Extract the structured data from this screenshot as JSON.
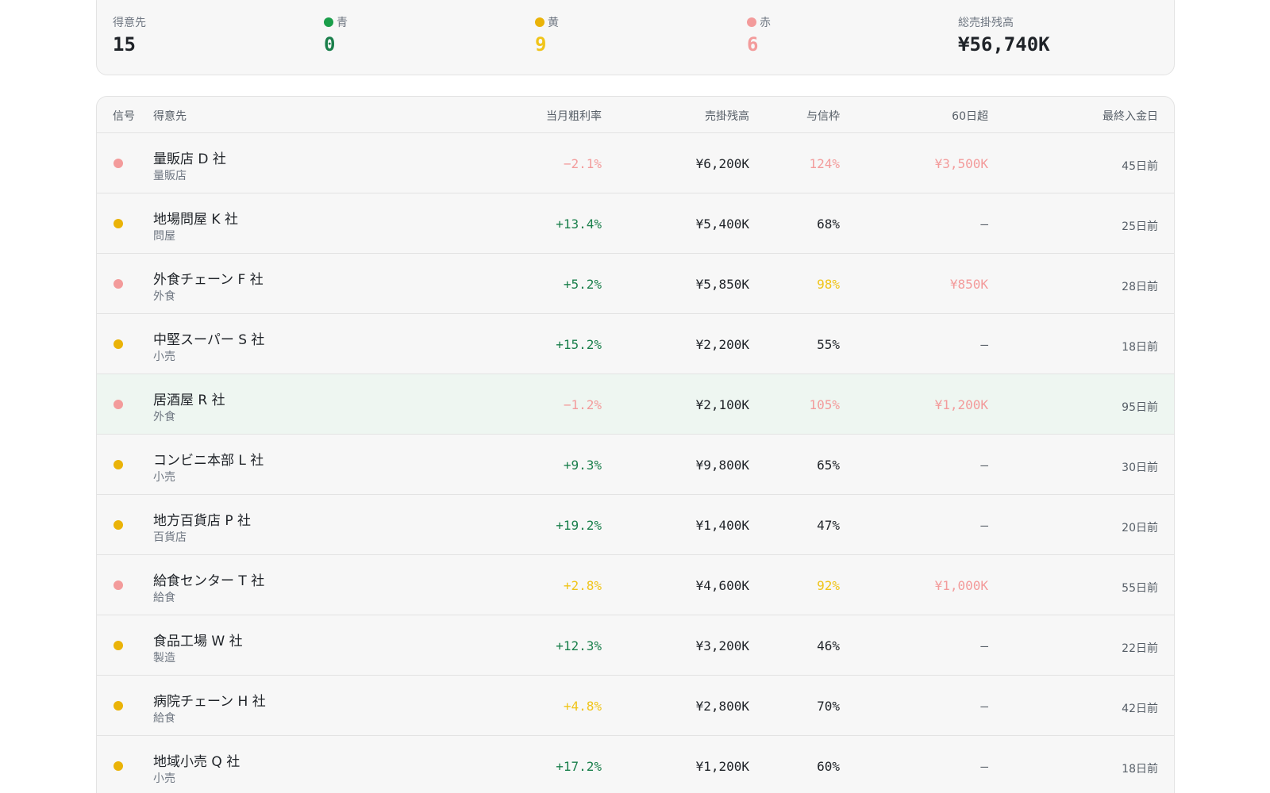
{
  "colors": {
    "green": "#1a9e4a",
    "yellow": "#eab308",
    "red": "#f39b9b",
    "positive": "#1a7f4b",
    "warning": "#f0c419",
    "danger": "#f39b9b",
    "text": "#1f2328",
    "muted": "#6e7681",
    "dash": "#555d66"
  },
  "summary": {
    "customers": {
      "label": "得意先",
      "value": "15"
    },
    "blue": {
      "label": "青",
      "value": "0",
      "dot_color": "#1a9e4a",
      "value_color": "#1a7f4b"
    },
    "yellow": {
      "label": "黄",
      "value": "9",
      "dot_color": "#eab308",
      "value_color": "#f0c419"
    },
    "red": {
      "label": "赤",
      "value": "6",
      "dot_color": "#f39b9b",
      "value_color": "#f39b9b"
    },
    "total": {
      "label": "総売掛残高",
      "value": "¥56,740K"
    }
  },
  "table": {
    "headers": {
      "signal": "信号",
      "customer": "得意先",
      "margin": "当月粗利率",
      "balance": "売掛残高",
      "credit": "与信枠",
      "over60": "60日超",
      "last_payment": "最終入金日"
    },
    "rows": [
      {
        "signal": "red",
        "name": "量販店 D 社",
        "category": "量販店",
        "margin": "−2.1%",
        "margin_tone": "danger",
        "balance": "¥6,200K",
        "credit": "124%",
        "credit_tone": "danger",
        "over60": "¥3,500K",
        "over60_tone": "danger",
        "last": "45日前"
      },
      {
        "signal": "yellow",
        "name": "地場問屋 K 社",
        "category": "問屋",
        "margin": "+13.4%",
        "margin_tone": "positive",
        "balance": "¥5,400K",
        "credit": "68%",
        "credit_tone": "text",
        "over60": "—",
        "over60_tone": "dash",
        "last": "25日前"
      },
      {
        "signal": "red",
        "name": "外食チェーン F 社",
        "category": "外食",
        "margin": "+5.2%",
        "margin_tone": "positive",
        "balance": "¥5,850K",
        "credit": "98%",
        "credit_tone": "warning",
        "over60": "¥850K",
        "over60_tone": "danger",
        "last": "28日前"
      },
      {
        "signal": "yellow",
        "name": "中堅スーパー S 社",
        "category": "小売",
        "margin": "+15.2%",
        "margin_tone": "positive",
        "balance": "¥2,200K",
        "credit": "55%",
        "credit_tone": "text",
        "over60": "—",
        "over60_tone": "dash",
        "last": "18日前"
      },
      {
        "signal": "red",
        "name": "居酒屋 R 社",
        "category": "外食",
        "margin": "−1.2%",
        "margin_tone": "danger",
        "balance": "¥2,100K",
        "credit": "105%",
        "credit_tone": "danger",
        "over60": "¥1,200K",
        "over60_tone": "danger",
        "last": "95日前",
        "highlight": true
      },
      {
        "signal": "yellow",
        "name": "コンビニ本部 L 社",
        "category": "小売",
        "margin": "+9.3%",
        "margin_tone": "positive",
        "balance": "¥9,800K",
        "credit": "65%",
        "credit_tone": "text",
        "over60": "—",
        "over60_tone": "dash",
        "last": "30日前"
      },
      {
        "signal": "yellow",
        "name": "地方百貨店 P 社",
        "category": "百貨店",
        "margin": "+19.2%",
        "margin_tone": "positive",
        "balance": "¥1,400K",
        "credit": "47%",
        "credit_tone": "text",
        "over60": "—",
        "over60_tone": "dash",
        "last": "20日前"
      },
      {
        "signal": "red",
        "name": "給食センター T 社",
        "category": "給食",
        "margin": "+2.8%",
        "margin_tone": "warning",
        "balance": "¥4,600K",
        "credit": "92%",
        "credit_tone": "warning",
        "over60": "¥1,000K",
        "over60_tone": "danger",
        "last": "55日前"
      },
      {
        "signal": "yellow",
        "name": "食品工場 W 社",
        "category": "製造",
        "margin": "+12.3%",
        "margin_tone": "positive",
        "balance": "¥3,200K",
        "credit": "46%",
        "credit_tone": "text",
        "over60": "—",
        "over60_tone": "dash",
        "last": "22日前"
      },
      {
        "signal": "yellow",
        "name": "病院チェーン H 社",
        "category": "給食",
        "margin": "+4.8%",
        "margin_tone": "warning",
        "balance": "¥2,800K",
        "credit": "70%",
        "credit_tone": "text",
        "over60": "—",
        "over60_tone": "dash",
        "last": "42日前"
      },
      {
        "signal": "yellow",
        "name": "地域小売 Q 社",
        "category": "小売",
        "margin": "+17.2%",
        "margin_tone": "positive",
        "balance": "¥1,200K",
        "credit": "60%",
        "credit_tone": "text",
        "over60": "—",
        "over60_tone": "dash",
        "last": "18日前"
      }
    ]
  }
}
